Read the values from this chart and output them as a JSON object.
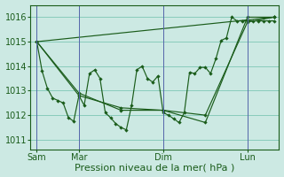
{
  "xlabel": "Pression niveau de la mer( hPa )",
  "bg_color": "#cce9e3",
  "line_color": "#1a5c1a",
  "grid_color_h": "#aaddcc",
  "grid_color_v": "#aaddcc",
  "vline_color": "#5566aa",
  "yticks": [
    1011,
    1012,
    1013,
    1014,
    1015,
    1016
  ],
  "ylim": [
    1010.6,
    1016.5
  ],
  "xtick_labels": [
    "Sam",
    "Mar",
    "Dim",
    "Lun"
  ],
  "xtick_pos": [
    0,
    2,
    6,
    10
  ],
  "xlim": [
    -0.3,
    11.5
  ],
  "vline_positions": [
    0,
    2,
    6,
    10
  ],
  "series1_x": [
    0,
    0.25,
    0.5,
    0.75,
    1.0,
    1.25,
    1.5,
    1.75,
    2.0,
    2.25,
    2.5,
    2.75,
    3.0,
    3.25,
    3.5,
    3.75,
    4.0,
    4.25,
    4.5,
    4.75,
    5.0,
    5.25,
    5.5,
    5.75,
    6.0,
    6.25,
    6.5,
    6.75,
    7.0,
    7.25,
    7.5,
    7.75,
    8.0,
    8.25,
    8.5,
    8.75,
    9.0,
    9.25,
    9.5,
    9.75,
    10.0,
    10.25,
    10.5,
    10.75,
    11.0,
    11.25
  ],
  "series1_y": [
    1015.0,
    1013.8,
    1013.1,
    1012.7,
    1012.6,
    1012.5,
    1011.9,
    1011.75,
    1012.8,
    1012.4,
    1013.7,
    1013.85,
    1013.5,
    1012.1,
    1011.9,
    1011.65,
    1011.5,
    1011.4,
    1012.4,
    1013.85,
    1014.0,
    1013.5,
    1013.35,
    1013.6,
    1012.1,
    1012.0,
    1011.85,
    1011.7,
    1012.1,
    1013.75,
    1013.7,
    1013.95,
    1013.95,
    1013.7,
    1014.3,
    1015.05,
    1015.15,
    1016.0,
    1015.85,
    1015.85,
    1015.85,
    1015.85,
    1015.85,
    1015.85,
    1015.85,
    1015.85
  ],
  "series2_x": [
    0,
    2,
    4,
    6,
    8,
    10,
    11.25
  ],
  "series2_y": [
    1015.0,
    1012.8,
    1012.3,
    1012.2,
    1012.0,
    1015.8,
    1016.0
  ],
  "series3_x": [
    0,
    2,
    4,
    6,
    8,
    10,
    11.25
  ],
  "series3_y": [
    1015.0,
    1012.9,
    1012.2,
    1012.2,
    1011.7,
    1016.0,
    1016.0
  ],
  "series4_x": [
    0,
    11.25
  ],
  "series4_y": [
    1015.0,
    1016.0
  ],
  "xlabel_fontsize": 8,
  "tick_fontsize": 7
}
